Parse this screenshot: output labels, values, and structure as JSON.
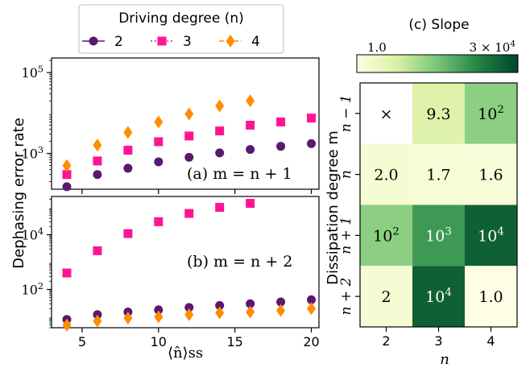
{
  "chart_data": [
    {
      "panel": "a",
      "type": "scatter",
      "annotation": "(a) m = n + 1",
      "ylabel": "Dephasing error rate",
      "yscale": "log",
      "xlim": [
        3,
        20.5
      ],
      "ylim": [
        130,
        230000
      ],
      "yticks": [
        {
          "value": 1000,
          "base": "10",
          "exp": "3"
        },
        {
          "value": 100000,
          "base": "10",
          "exp": "5"
        }
      ],
      "x": [
        4,
        6,
        8,
        10,
        12,
        14,
        16,
        18,
        20
      ],
      "series": [
        {
          "name": "2",
          "marker": "circle",
          "color": "#5a186e",
          "y": [
            150,
            300,
            430,
            620,
            800,
            1030,
            1250,
            1500,
            1750
          ]
        },
        {
          "name": "3",
          "marker": "square",
          "color": "#ff1493",
          "y": [
            300,
            650,
            1200,
            1950,
            2700,
            3600,
            5000,
            6000,
            7500
          ]
        },
        {
          "name": "4",
          "marker": "diamond",
          "color": "#ff8c00",
          "y": [
            500,
            1600,
            3300,
            6000,
            9500,
            15000,
            20000,
            null,
            null
          ]
        }
      ]
    },
    {
      "panel": "b",
      "type": "scatter",
      "annotation": "(b) m = n + 2",
      "yscale": "log",
      "xlim": [
        3,
        20.5
      ],
      "ylim": [
        4,
        250000
      ],
      "xlabel": "⟨n̂⟩ss",
      "xticks": [
        "5",
        "10",
        "15",
        "20"
      ],
      "yticks": [
        {
          "value": 100,
          "base": "10",
          "exp": "2"
        },
        {
          "value": 10000,
          "base": "10",
          "exp": "4"
        }
      ],
      "x": [
        4,
        6,
        8,
        10,
        12,
        14,
        16,
        18,
        20
      ],
      "series": [
        {
          "name": "2",
          "marker": "circle",
          "color": "#5a186e",
          "y": [
            8,
            12,
            15,
            18,
            22,
            26,
            30,
            35,
            42
          ]
        },
        {
          "name": "3",
          "marker": "square",
          "color": "#ff1493",
          "y": [
            400,
            2600,
            11000,
            30000,
            60000,
            100000,
            140000,
            null,
            null
          ]
        },
        {
          "name": "4",
          "marker": "diamond",
          "color": "#ff8c00",
          "y": [
            5,
            7,
            9,
            10,
            12,
            14,
            15,
            17,
            20
          ]
        }
      ]
    },
    {
      "panel": "c",
      "type": "heatmap",
      "title": "(c) Slope",
      "xlabel": "n",
      "ylabel": "Dissipation degree m",
      "x_categories": [
        "2",
        "3",
        "4"
      ],
      "y_categories": [
        "n − 1",
        "n",
        "n + 1",
        "n + 2"
      ],
      "cells": [
        [
          {
            "label": "×",
            "value": null
          },
          {
            "label": "9.3",
            "base": "",
            "exp": "",
            "value": 9.3
          },
          {
            "label": "10",
            "base": "10",
            "exp": "2",
            "value": 100
          }
        ],
        [
          {
            "label": "2.0",
            "value": 2.0
          },
          {
            "label": "1.7",
            "value": 1.7
          },
          {
            "label": "1.6",
            "value": 1.6
          }
        ],
        [
          {
            "label": "10",
            "base": "10",
            "exp": "2",
            "value": 100
          },
          {
            "label": "10",
            "base": "10",
            "exp": "3",
            "value": 1000
          },
          {
            "label": "10",
            "base": "10",
            "exp": "4",
            "value": 10000
          }
        ],
        [
          {
            "label": "2",
            "value": 2
          },
          {
            "label": "10",
            "base": "10",
            "exp": "4",
            "value": 10000
          },
          {
            "label": "1.0",
            "value": 1.0
          }
        ]
      ],
      "colorbar": {
        "min_label": "1.0",
        "max_label": "3 × 10",
        "max_exp": "4",
        "min": 1.0,
        "max": 30000,
        "colormap": "Greens"
      }
    }
  ],
  "legend": {
    "title": "Driving degree (n)",
    "entries": [
      {
        "label": "2",
        "marker": "circle",
        "color": "#5a186e",
        "dash": "solid"
      },
      {
        "label": "3",
        "marker": "square",
        "color": "#ff1493",
        "dash": "dotted"
      },
      {
        "label": "4",
        "marker": "diamond",
        "color": "#ff8c00",
        "dash": "dashed"
      }
    ]
  }
}
